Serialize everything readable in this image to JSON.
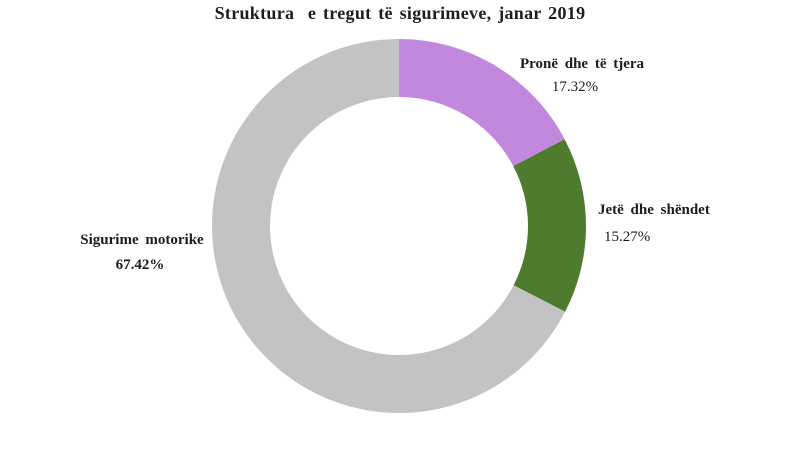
{
  "chart_data": {
    "type": "pie",
    "subtype": "donut",
    "title": "Struktura  e tregut të sigurimeve, janar 2019",
    "categories": [
      "Pronë dhe të tjera",
      "Jetë dhe shëndet",
      "Sigurime motorike"
    ],
    "values": [
      17.32,
      15.27,
      67.42
    ],
    "unit": "%",
    "start_angle_deg": 0,
    "direction": "clockwise",
    "donut_hole_ratio": 0.69,
    "legend_position": "none",
    "background_color": "#ffffff",
    "text_color": "#1c1c22",
    "segments": [
      {
        "slug": "prone-dhe-te-tjera",
        "label": "Pronë dhe të tjera",
        "value": 17.32,
        "value_label": "17.32%",
        "color": "#C188DE",
        "label_bold": true,
        "value_bold": false
      },
      {
        "slug": "jete-dhe-shendet",
        "label": "Jetë dhe shëndet",
        "value": 15.27,
        "value_label": "15.27%",
        "color": "#4E7B2E",
        "label_bold": true,
        "value_bold": false
      },
      {
        "slug": "sigurime-motorike",
        "label": "Sigurime motorike",
        "value": 67.42,
        "value_label": "67.42%",
        "color": "#C3C3C3",
        "label_bold": true,
        "value_bold": true
      }
    ]
  }
}
